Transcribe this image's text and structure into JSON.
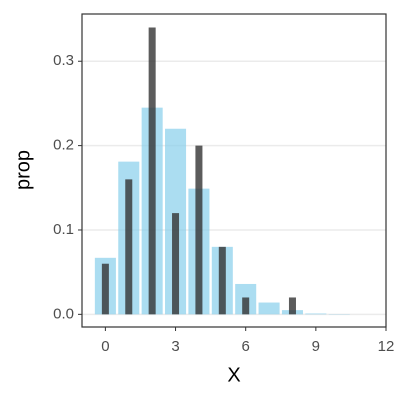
{
  "chart_data": {
    "type": "bar",
    "x_label": "X",
    "y_label": "prop",
    "series": [
      {
        "x": [
          0,
          1,
          2,
          3,
          4,
          5,
          6,
          7,
          8,
          9,
          10
        ],
        "values": [
          0.067,
          0.181,
          0.245,
          0.22,
          0.149,
          0.08,
          0.036,
          0.014,
          0.005,
          0.001,
          0.0004
        ],
        "color": "#87ceeb"
      },
      {
        "x": [
          0,
          1,
          2,
          3,
          4,
          5,
          6,
          8
        ],
        "values": [
          0.06,
          0.16,
          0.34,
          0.12,
          0.2,
          0.08,
          0.02,
          0.02
        ],
        "color": "#333333"
      }
    ],
    "xlim": [
      -1,
      12
    ],
    "ylim": [
      -0.015,
      0.356
    ],
    "xticks": [
      0,
      3,
      6,
      9,
      12
    ],
    "yticks": [
      {
        "value": 0,
        "label": "0.0"
      },
      0.1,
      0.2,
      0.3
    ],
    "grid": true
  }
}
